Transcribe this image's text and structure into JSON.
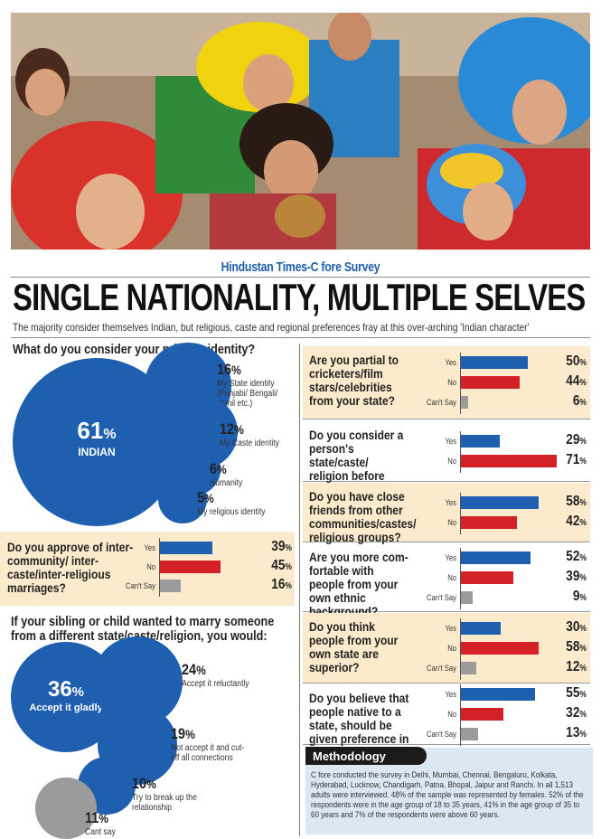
{
  "header": {
    "survey_tag": "Hindustan Times-C fore Survey",
    "headline": "SINGLE NATIONALITY, MULTIPLE SELVES",
    "subhead": "The majority consider themselves Indian, but religious, caste and regional preferences fray at this over-arching 'Indian character'"
  },
  "colors": {
    "blue": "#1f5fb0",
    "red": "#d42027",
    "grey": "#9b9b9b",
    "panel": "#fbeacc",
    "accent": "#1f5fa8"
  },
  "identity": {
    "question": "What do you consider your primary identity?",
    "items": [
      {
        "pct": "61",
        "label": "INDIAN"
      },
      {
        "pct": "16",
        "label": "My State identity (Punjabi/ Bengali/ Tamil etc.)"
      },
      {
        "pct": "12",
        "label": "My Caste identity"
      },
      {
        "pct": "6",
        "label": "Humanity"
      },
      {
        "pct": "5",
        "label": "My religious identity"
      }
    ]
  },
  "approve": {
    "question": "Do you approve of inter-community/ inter-caste/inter-religious marriages?",
    "rows": [
      {
        "label": "Yes",
        "pct": "39"
      },
      {
        "label": "No",
        "pct": "45"
      },
      {
        "label": "Can't Say",
        "pct": "16"
      }
    ]
  },
  "sibling": {
    "question": "If your sibling or child wanted to marry someone from a different state/caste/religion, you would:",
    "items": [
      {
        "pct": "36",
        "label": "Accept it gladly"
      },
      {
        "pct": "24",
        "label": "Accept it reluctantly"
      },
      {
        "pct": "19",
        "label": "Not accept it and cut-off all connections"
      },
      {
        "pct": "10",
        "label": "Try to break up the relationship"
      },
      {
        "pct": "11",
        "label": "Cant say"
      }
    ]
  },
  "right_questions": [
    {
      "question": "Are you partial to cricketers/film stars/celebrities from your state?",
      "shaded": true,
      "rows": [
        {
          "label": "Yes",
          "pct": "50"
        },
        {
          "label": "No",
          "pct": "44"
        },
        {
          "label": "Can't Say",
          "pct": "6"
        }
      ]
    },
    {
      "question": "Do you consider a person's state/caste/ religion before making friends?",
      "shaded": false,
      "rows": [
        {
          "label": "Yes",
          "pct": "29"
        },
        {
          "label": "No",
          "pct": "71"
        }
      ]
    },
    {
      "question": "Do you have close friends from other communities/castes/ religious groups?",
      "shaded": true,
      "rows": [
        {
          "label": "Yes",
          "pct": "58"
        },
        {
          "label": "No",
          "pct": "42"
        }
      ]
    },
    {
      "question": "Are you more com-fortable with people from your own ethnic background?",
      "shaded": false,
      "rows": [
        {
          "label": "Yes",
          "pct": "52"
        },
        {
          "label": "No",
          "pct": "39"
        },
        {
          "label": "Can't Say",
          "pct": "9"
        }
      ]
    },
    {
      "question": "Do you think people from your own state are superior?",
      "shaded": true,
      "rows": [
        {
          "label": "Yes",
          "pct": "30"
        },
        {
          "label": "No",
          "pct": "58"
        },
        {
          "label": "Can't Say",
          "pct": "12"
        }
      ]
    },
    {
      "question": "Do you believe that people native to a state, should be given preference in jobs etc?",
      "shaded": false,
      "rows": [
        {
          "label": "Yes",
          "pct": "55"
        },
        {
          "label": "No",
          "pct": "32"
        },
        {
          "label": "Can't Say",
          "pct": "13"
        }
      ]
    }
  ],
  "methodology": {
    "title": "Methodology",
    "text": "C fore conducted the survey in Delhi, Mumbai, Chennai, Bengaluru, Kolkata, Hyderabad, Lucknow, Chandigarh, Patna, Bhopal, Jaipur and Ranchi. In all 1,513 adults were interviewed. 48% of the sample was represented by females. 52% of the respondents were in the age group of 18 to 35 years, 41% in the age group of 35 to 60 years and 7% of the respondents were above 60 years."
  },
  "chart_data": [
    {
      "type": "bubble",
      "title": "What do you consider your primary identity?",
      "categories": [
        "INDIAN",
        "My State identity (Punjabi/ Bengali/ Tamil etc.)",
        "My Caste identity",
        "Humanity",
        "My religious identity"
      ],
      "values": [
        61,
        16,
        12,
        6,
        5
      ],
      "unit": "%"
    },
    {
      "type": "bar",
      "title": "Do you approve of inter-community/ inter-caste/inter-religious marriages?",
      "categories": [
        "Yes",
        "No",
        "Can't Say"
      ],
      "values": [
        39,
        45,
        16
      ],
      "unit": "%"
    },
    {
      "type": "bubble",
      "title": "If your sibling or child wanted to marry someone from a different state/caste/religion, you would:",
      "categories": [
        "Accept it gladly",
        "Accept it reluctantly",
        "Not accept it and cut-off all connections",
        "Try to break up the relationship",
        "Cant say"
      ],
      "values": [
        36,
        24,
        19,
        10,
        11
      ],
      "unit": "%"
    },
    {
      "type": "bar",
      "title": "Are you partial to cricketers/film stars/celebrities from your state?",
      "categories": [
        "Yes",
        "No",
        "Can't Say"
      ],
      "values": [
        50,
        44,
        6
      ],
      "unit": "%"
    },
    {
      "type": "bar",
      "title": "Do you consider a person's state/caste/ religion before making friends?",
      "categories": [
        "Yes",
        "No"
      ],
      "values": [
        29,
        71
      ],
      "unit": "%"
    },
    {
      "type": "bar",
      "title": "Do you have close friends from other communities/castes/ religious groups?",
      "categories": [
        "Yes",
        "No"
      ],
      "values": [
        58,
        42
      ],
      "unit": "%"
    },
    {
      "type": "bar",
      "title": "Are you more com-fortable with people from your own ethnic background?",
      "categories": [
        "Yes",
        "No",
        "Can't Say"
      ],
      "values": [
        52,
        39,
        9
      ],
      "unit": "%"
    },
    {
      "type": "bar",
      "title": "Do you think people from your own state are superior?",
      "categories": [
        "Yes",
        "No",
        "Can't Say"
      ],
      "values": [
        30,
        58,
        12
      ],
      "unit": "%"
    },
    {
      "type": "bar",
      "title": "Do you believe that people native to a state, should be given preference in jobs etc?",
      "categories": [
        "Yes",
        "No",
        "Can't Say"
      ],
      "values": [
        55,
        32,
        13
      ],
      "unit": "%"
    }
  ]
}
